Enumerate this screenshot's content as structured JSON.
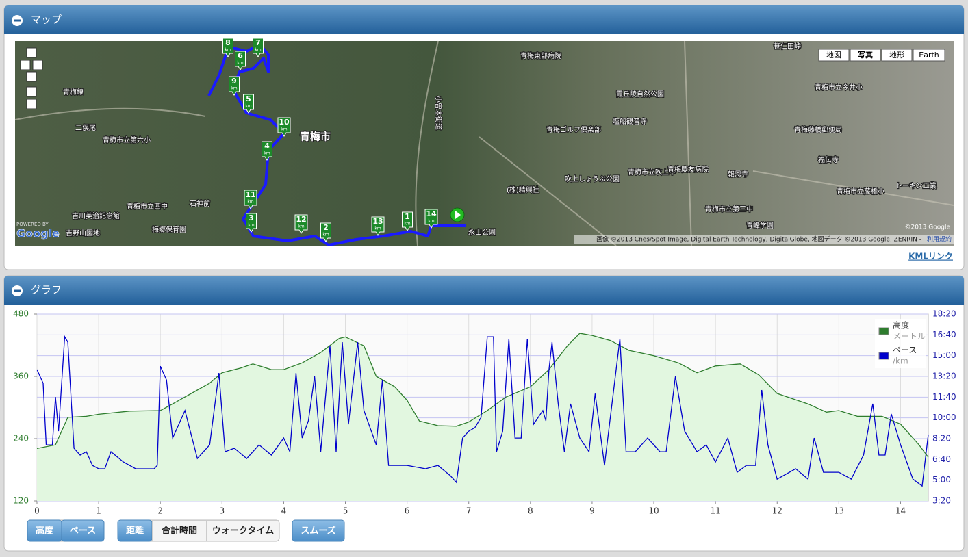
{
  "map_panel": {
    "title": "マップ",
    "map_types": [
      "地図",
      "写真",
      "地形",
      "Earth"
    ],
    "km_markers": [
      "1",
      "2",
      "3",
      "4",
      "5",
      "6",
      "7",
      "8",
      "9",
      "10",
      "11",
      "12",
      "13",
      "14"
    ],
    "km_unit": "km",
    "places": [
      "青梅市",
      "二俣尾",
      "青梅市立第六小",
      "石神前",
      "吉川英治記念館",
      "青梅市立西中",
      "梅郷保育園",
      "吉野山園地",
      "青梅東部病院",
      "霞丘陵自然公園",
      "塩船観音寺",
      "青梅ゴルフ倶楽部",
      "吹上しょうぶ公園",
      "(株)精興社",
      "青梅市立吹上中",
      "青梅慶友病院",
      "報恩寺",
      "笹仁田峠",
      "青梅市立今井小",
      "青梅藤橋郵便局",
      "福伝寺",
      "青梅市立藤橋小",
      "トーキン工業",
      "永山公園",
      "青梅市立第三中",
      "青峰学園",
      "青梅線",
      "小曽木街道"
    ],
    "powered_by": "POWERED BY",
    "google_logo": "Google",
    "copyright": "©2013 Google",
    "attribution": "画像 ©2013 Cnes/Spot Image, Digital Earth Technology, DigitalGlobe, 地図データ ©2013 Google, ZENRIN - ",
    "terms": "利用規約",
    "kml_link": "KMLリンク"
  },
  "graph_panel": {
    "title": "グラフ",
    "buttons": {
      "metric": [
        "高度",
        "ペース"
      ],
      "x_mode": [
        "距離",
        "合計時間",
        "ウォークタイム"
      ],
      "smooth": "スムーズ"
    }
  },
  "chart_data": {
    "type": "line",
    "xlim": [
      0,
      14.45
    ],
    "xticks": [
      0,
      1,
      2,
      3,
      4,
      5,
      6,
      7,
      8,
      9,
      10,
      11,
      12,
      13,
      14
    ],
    "ylim": [
      120,
      480
    ],
    "yticks": [
      120,
      240,
      360,
      480
    ],
    "y2lim": [
      200,
      1100
    ],
    "y2ticks": [
      {
        "value": 200,
        "label": "3:20"
      },
      {
        "value": 300,
        "label": "5:00"
      },
      {
        "value": 400,
        "label": "6:40"
      },
      {
        "value": 500,
        "label": "8:20"
      },
      {
        "value": 600,
        "label": "10:00"
      },
      {
        "value": 700,
        "label": "11:40"
      },
      {
        "value": 800,
        "label": "13:20"
      },
      {
        "value": 900,
        "label": "15:00"
      },
      {
        "value": 1000,
        "label": "16:40"
      },
      {
        "value": 1100,
        "label": "18:20"
      }
    ],
    "grid": true,
    "legend": "top-right",
    "series": [
      {
        "name": "高度",
        "unit": "メートル",
        "color": "#2e7d2e",
        "fill": "#e2f7e0",
        "x": [
          0,
          0.3,
          0.5,
          0.8,
          1.0,
          1.5,
          2.0,
          2.2,
          2.5,
          2.8,
          3.0,
          3.3,
          3.5,
          3.8,
          4.0,
          4.3,
          4.6,
          4.9,
          5.0,
          5.3,
          5.5,
          5.8,
          6.0,
          6.2,
          6.5,
          6.8,
          7.0,
          7.3,
          7.6,
          8.0,
          8.3,
          8.6,
          8.8,
          9.0,
          9.3,
          9.6,
          10.0,
          10.4,
          10.7,
          11.0,
          11.4,
          11.7,
          12.0,
          12.5,
          12.8,
          13.0,
          13.3,
          13.7,
          14.0,
          14.3,
          14.45
        ],
        "values": [
          221,
          228,
          281,
          283,
          287,
          293,
          294,
          307,
          327,
          347,
          367,
          376,
          384,
          373,
          373,
          386,
          406,
          433,
          436,
          419,
          360,
          340,
          314,
          274,
          265,
          264,
          272,
          294,
          320,
          340,
          373,
          419,
          443,
          439,
          429,
          410,
          400,
          386,
          367,
          380,
          384,
          363,
          327,
          307,
          291,
          294,
          283,
          283,
          268,
          228,
          204
        ]
      },
      {
        "name": "ペース",
        "unit": "/km",
        "color": "#0000cc",
        "axis": "y2",
        "x": [
          0,
          0.1,
          0.15,
          0.25,
          0.3,
          0.35,
          0.45,
          0.5,
          0.6,
          0.7,
          0.8,
          0.9,
          1.0,
          1.1,
          1.2,
          1.4,
          1.6,
          1.9,
          1.95,
          2.0,
          2.1,
          2.2,
          2.4,
          2.6,
          2.8,
          2.95,
          3.05,
          3.2,
          3.4,
          3.6,
          3.8,
          4.0,
          4.1,
          4.2,
          4.3,
          4.4,
          4.5,
          4.6,
          4.75,
          4.85,
          4.95,
          5.05,
          5.2,
          5.3,
          5.5,
          5.6,
          5.7,
          6.0,
          6.3,
          6.5,
          6.7,
          6.8,
          6.9,
          7.0,
          7.1,
          7.2,
          7.3,
          7.4,
          7.45,
          7.55,
          7.65,
          7.75,
          7.85,
          7.95,
          8.05,
          8.2,
          8.25,
          8.3,
          8.35,
          8.45,
          8.55,
          8.65,
          8.8,
          8.95,
          9.05,
          9.2,
          9.45,
          9.55,
          9.7,
          9.9,
          10.1,
          10.2,
          10.35,
          10.5,
          10.7,
          10.85,
          11.0,
          11.2,
          11.35,
          11.5,
          11.65,
          11.75,
          11.85,
          12.0,
          12.3,
          12.5,
          12.6,
          12.75,
          13.0,
          13.2,
          13.4,
          13.55,
          13.65,
          13.75,
          13.85,
          14.0,
          14.2,
          14.35,
          14.45
        ],
        "values": [
          833,
          767,
          470,
          470,
          701,
          536,
          991,
          965,
          454,
          421,
          437,
          371,
          355,
          355,
          437,
          388,
          355,
          355,
          371,
          849,
          783,
          503,
          635,
          404,
          470,
          816,
          437,
          454,
          404,
          470,
          421,
          503,
          437,
          816,
          503,
          586,
          800,
          437,
          948,
          437,
          965,
          569,
          965,
          635,
          470,
          783,
          371,
          371,
          355,
          371,
          322,
          289,
          503,
          536,
          553,
          602,
          991,
          991,
          437,
          536,
          981,
          503,
          503,
          981,
          569,
          635,
          586,
          833,
          965,
          668,
          437,
          668,
          503,
          437,
          717,
          371,
          981,
          437,
          437,
          503,
          437,
          437,
          800,
          536,
          437,
          470,
          388,
          503,
          338,
          371,
          371,
          734,
          470,
          305,
          355,
          305,
          503,
          338,
          338,
          305,
          421,
          668,
          421,
          421,
          619,
          470,
          305,
          272,
          520
        ]
      }
    ]
  }
}
